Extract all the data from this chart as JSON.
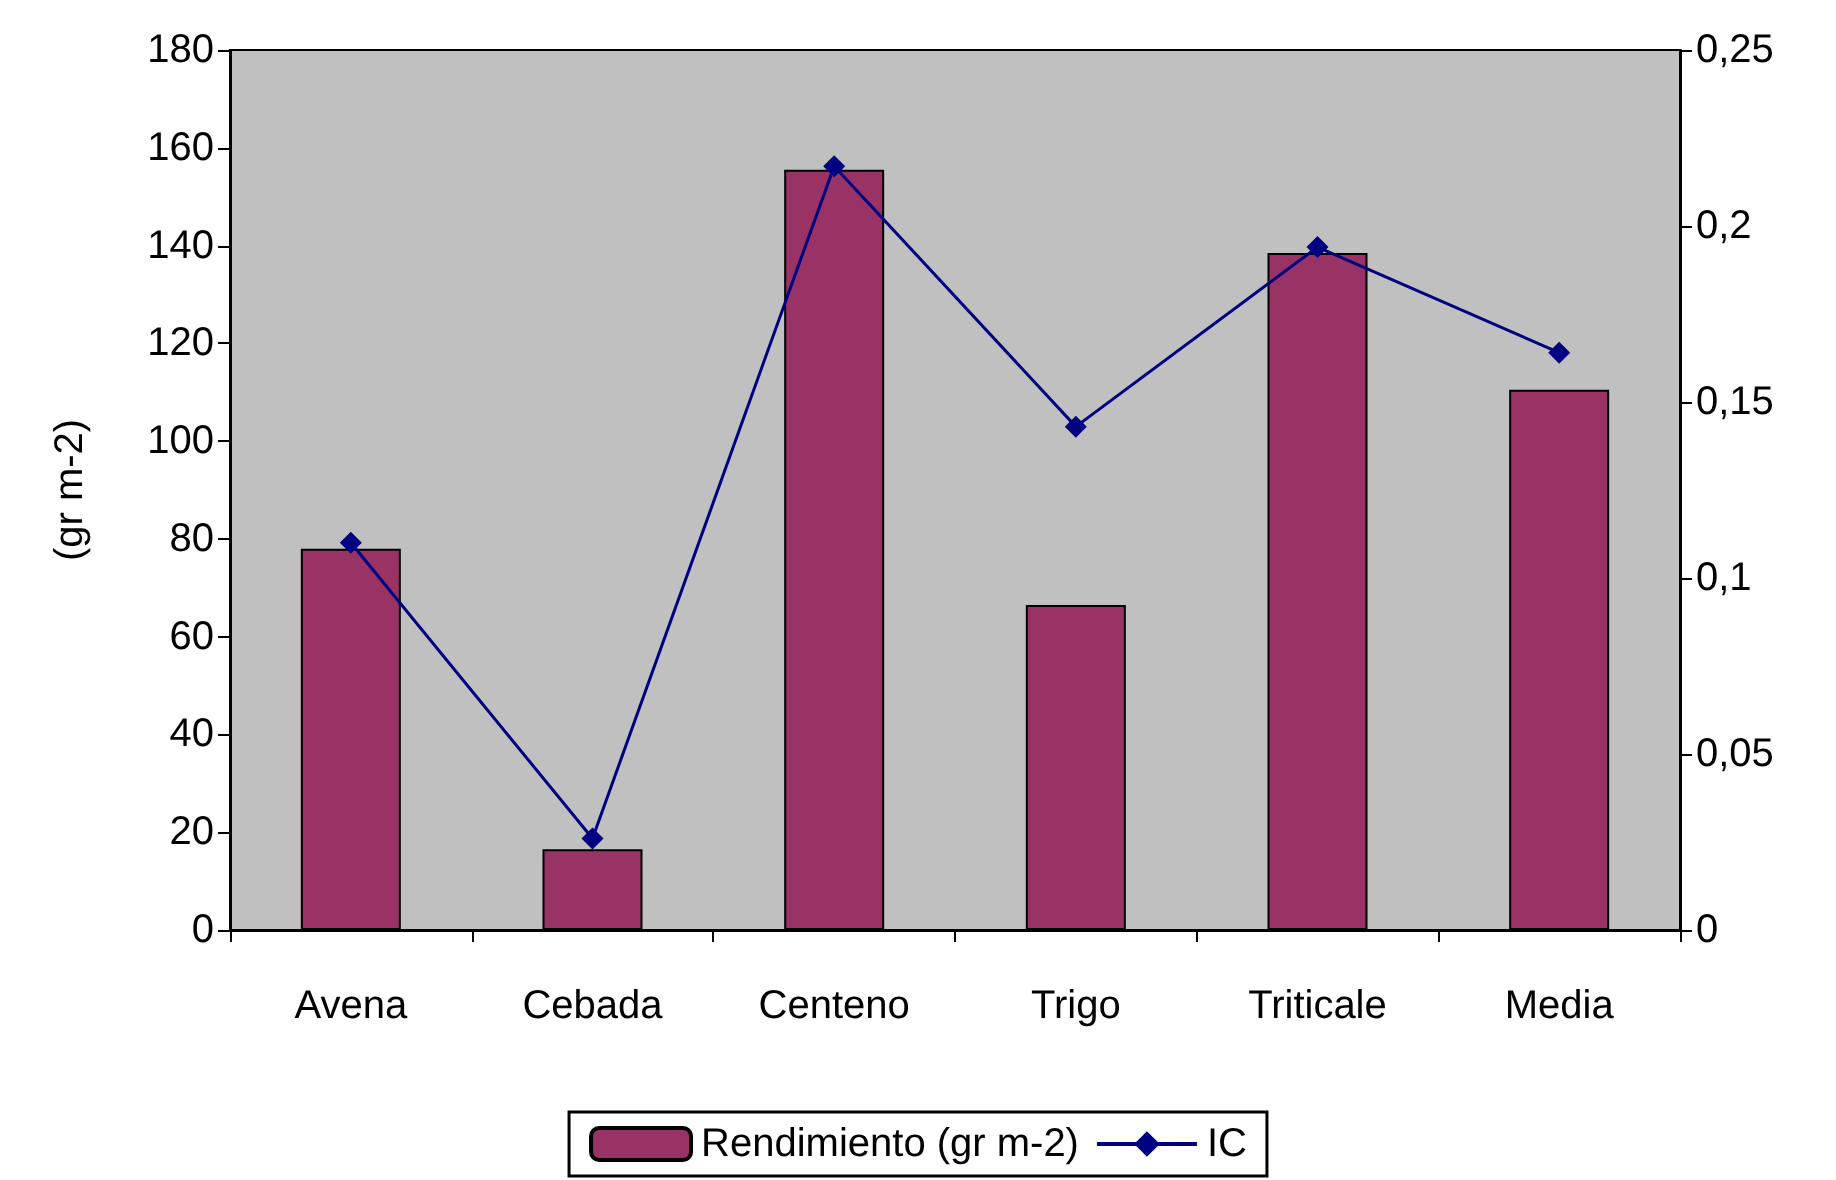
{
  "chart_data": {
    "type": "bar",
    "categories": [
      "Avena",
      "Cebada",
      "Centeno",
      "Trigo",
      "Triticale",
      "Media"
    ],
    "series": [
      {
        "name": "Rendimiento (gr m-2)",
        "color": "#993366",
        "values": [
          78,
          16.5,
          155.5,
          66.5,
          138.5,
          110.5
        ]
      },
      {
        "name": "IC",
        "type": "line",
        "axis": "y2",
        "color": "#000080",
        "marker": "diamond",
        "values": [
          0.11,
          0.026,
          0.217,
          0.143,
          0.194,
          0.164
        ]
      }
    ],
    "ylabel": "(gr m-2)",
    "ylim": [
      0,
      180
    ],
    "yticks": [
      0,
      20,
      40,
      60,
      80,
      100,
      120,
      140,
      160,
      180
    ],
    "y2lim": [
      0,
      0.25
    ],
    "y2ticks": [
      {
        "value": 0,
        "label": "0"
      },
      {
        "value": 0.05,
        "label": "0,05"
      },
      {
        "value": 0.1,
        "label": "0,1"
      },
      {
        "value": 0.15,
        "label": "0,15"
      },
      {
        "value": 0.2,
        "label": "0,2"
      },
      {
        "value": 0.25,
        "label": "0,25"
      }
    ],
    "grid": false,
    "legend": "bottom"
  }
}
